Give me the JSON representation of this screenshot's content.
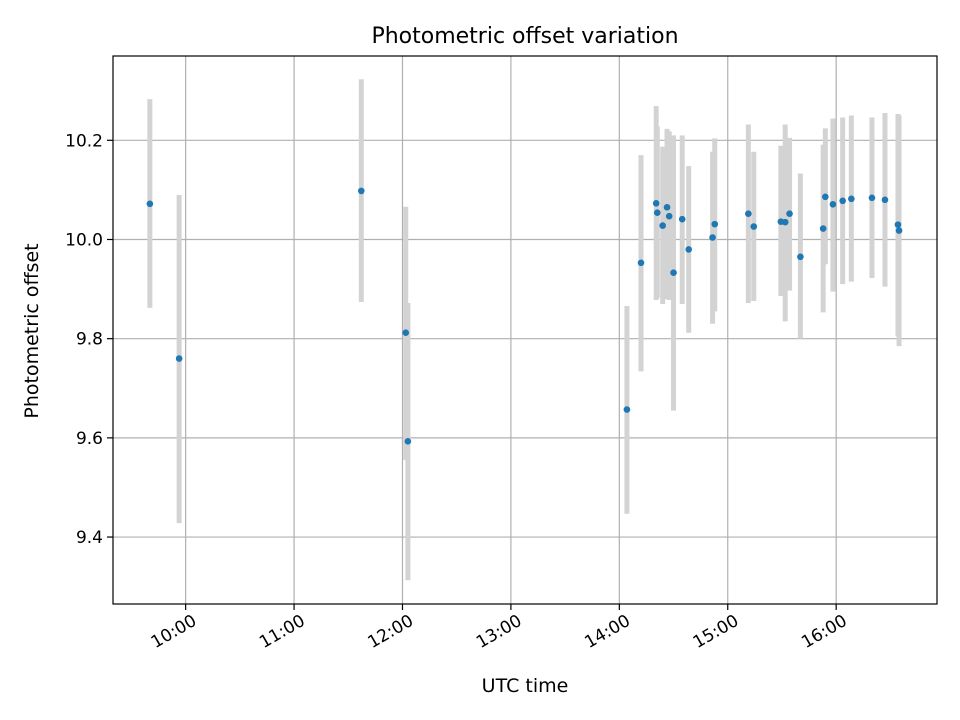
{
  "chart_data": {
    "type": "scatter",
    "title": "Photometric offset variation",
    "xlabel": "UTC time",
    "ylabel": "Photometric offset",
    "x_unit": "hours UTC",
    "xlim": [
      9.33,
      16.93
    ],
    "ylim": [
      9.265,
      10.37
    ],
    "x_ticks": [
      {
        "value": 10,
        "label": "10:00"
      },
      {
        "value": 11,
        "label": "11:00"
      },
      {
        "value": 12,
        "label": "12:00"
      },
      {
        "value": 13,
        "label": "13:00"
      },
      {
        "value": 14,
        "label": "14:00"
      },
      {
        "value": 15,
        "label": "15:00"
      },
      {
        "value": 16,
        "label": "16:00"
      }
    ],
    "y_ticks": [
      {
        "value": 9.4,
        "label": "9.4"
      },
      {
        "value": 9.6,
        "label": "9.6"
      },
      {
        "value": 9.8,
        "label": "9.8"
      },
      {
        "value": 10.0,
        "label": "10.0"
      },
      {
        "value": 10.2,
        "label": "10.2"
      }
    ],
    "grid": true,
    "colors": {
      "point": "#1f77b4",
      "errorbar": "#d3d3d3",
      "grid": "#b0b0b0"
    },
    "points": [
      {
        "x": 9.67,
        "y": 10.072,
        "lo": 9.862,
        "hi": 10.283
      },
      {
        "x": 9.94,
        "y": 9.76,
        "lo": 9.428,
        "hi": 10.09
      },
      {
        "x": 11.62,
        "y": 10.098,
        "lo": 9.874,
        "hi": 10.323
      },
      {
        "x": 12.03,
        "y": 9.812,
        "lo": 9.555,
        "hi": 10.066
      },
      {
        "x": 12.05,
        "y": 9.593,
        "lo": 9.313,
        "hi": 9.872
      },
      {
        "x": 14.07,
        "y": 9.657,
        "lo": 9.447,
        "hi": 9.866
      },
      {
        "x": 14.2,
        "y": 9.953,
        "lo": 9.734,
        "hi": 10.17
      },
      {
        "x": 14.34,
        "y": 10.073,
        "lo": 9.878,
        "hi": 10.269
      },
      {
        "x": 14.35,
        "y": 10.054,
        "lo": 9.882,
        "hi": 10.228
      },
      {
        "x": 14.4,
        "y": 10.028,
        "lo": 9.87,
        "hi": 10.187
      },
      {
        "x": 14.44,
        "y": 10.065,
        "lo": 9.88,
        "hi": 10.223
      },
      {
        "x": 14.46,
        "y": 10.047,
        "lo": 9.878,
        "hi": 10.218
      },
      {
        "x": 14.5,
        "y": 9.933,
        "lo": 9.655,
        "hi": 10.21
      },
      {
        "x": 14.58,
        "y": 10.041,
        "lo": 9.87,
        "hi": 10.21
      },
      {
        "x": 14.64,
        "y": 9.98,
        "lo": 9.812,
        "hi": 10.148
      },
      {
        "x": 14.86,
        "y": 10.004,
        "lo": 9.83,
        "hi": 10.177
      },
      {
        "x": 14.88,
        "y": 10.031,
        "lo": 9.855,
        "hi": 10.204
      },
      {
        "x": 15.19,
        "y": 10.052,
        "lo": 9.872,
        "hi": 10.232
      },
      {
        "x": 15.24,
        "y": 10.026,
        "lo": 9.876,
        "hi": 10.177
      },
      {
        "x": 15.49,
        "y": 10.036,
        "lo": 9.886,
        "hi": 10.189
      },
      {
        "x": 15.53,
        "y": 10.035,
        "lo": 9.835,
        "hi": 10.232
      },
      {
        "x": 15.57,
        "y": 10.052,
        "lo": 9.897,
        "hi": 10.205
      },
      {
        "x": 15.67,
        "y": 9.965,
        "lo": 9.8,
        "hi": 10.133
      },
      {
        "x": 15.88,
        "y": 10.022,
        "lo": 9.853,
        "hi": 10.191
      },
      {
        "x": 15.9,
        "y": 10.086,
        "lo": 9.95,
        "hi": 10.224
      },
      {
        "x": 15.97,
        "y": 10.071,
        "lo": 9.895,
        "hi": 10.244
      },
      {
        "x": 16.06,
        "y": 10.078,
        "lo": 9.91,
        "hi": 10.246
      },
      {
        "x": 16.14,
        "y": 10.082,
        "lo": 9.915,
        "hi": 10.25
      },
      {
        "x": 16.33,
        "y": 10.084,
        "lo": 9.922,
        "hi": 10.246
      },
      {
        "x": 16.45,
        "y": 10.08,
        "lo": 9.905,
        "hi": 10.255
      },
      {
        "x": 16.57,
        "y": 10.03,
        "lo": 9.805,
        "hi": 10.253
      },
      {
        "x": 16.58,
        "y": 10.018,
        "lo": 9.785,
        "hi": 10.25
      }
    ]
  }
}
